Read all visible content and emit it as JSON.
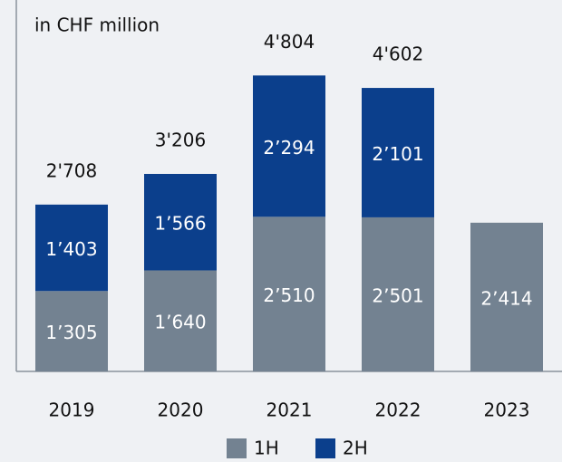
{
  "chart_data": {
    "type": "stacked_bar",
    "title": "in CHF million",
    "categories": [
      "2019",
      "2020",
      "2021",
      "2022",
      "2023"
    ],
    "series": [
      {
        "name": "1H",
        "color": "#738291",
        "values": [
          1305,
          1640,
          2510,
          2501,
          2414
        ],
        "value_labels": [
          "1’305",
          "1’640",
          "2’510",
          "2’501",
          "2’414"
        ]
      },
      {
        "name": "2H",
        "color": "#0b3f8c",
        "values": [
          1403,
          1566,
          2294,
          2101,
          null
        ],
        "value_labels": [
          "1’403",
          "1’566",
          "2’294",
          "2’101",
          null
        ]
      }
    ],
    "totals": {
      "values": [
        2708,
        3206,
        4804,
        4602,
        null
      ],
      "value_labels": [
        "2'708",
        "3'206",
        "4'804",
        "4'602",
        null
      ]
    },
    "ylim": [
      0,
      6000
    ],
    "legend": "bottom"
  }
}
